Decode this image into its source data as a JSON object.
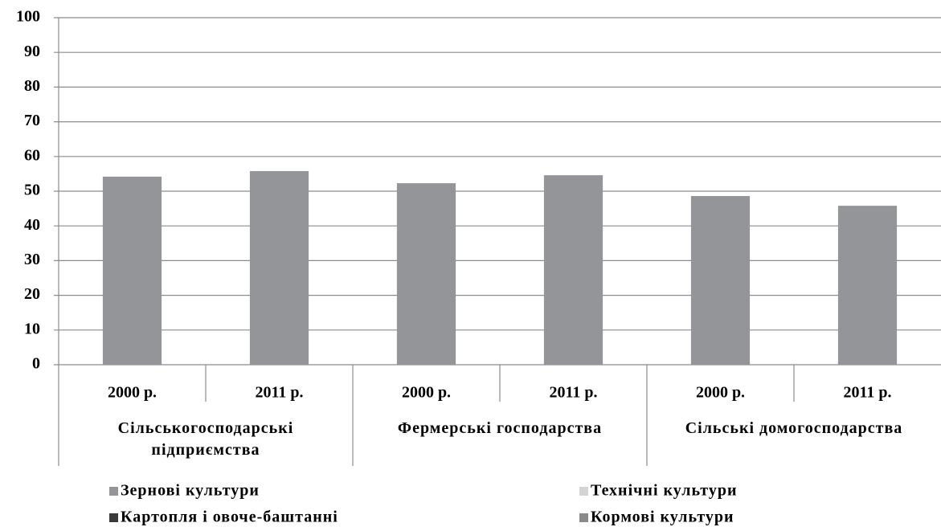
{
  "chart_data": {
    "type": "bar",
    "categories": [
      "2000 р.",
      "2011 р.",
      "2000 р.",
      "2011 р.",
      "2000 р.",
      "2011 р."
    ],
    "groups": [
      "Сільськогосподарські підприємства",
      "Фермерські господарства",
      "Сільські домогосподарства"
    ],
    "series": [
      {
        "name": "Зернові культури",
        "color": "#939598",
        "values": [
          54.2,
          55.8,
          52.3,
          54.6,
          48.6,
          45.8
        ]
      },
      {
        "name": "Картопля і овоче-баштанні",
        "color": "#3a3a3a",
        "values": [
          null,
          null,
          null,
          null,
          null,
          null
        ]
      },
      {
        "name": "Технічні культури",
        "color": "#d4d4d4",
        "values": [
          null,
          null,
          null,
          null,
          null,
          null
        ]
      },
      {
        "name": "Кормові культури",
        "color": "#8a8a8a",
        "values": [
          null,
          null,
          null,
          null,
          null,
          null
        ]
      }
    ],
    "ylim": [
      0,
      100
    ],
    "yticks": [
      0,
      10,
      20,
      30,
      40,
      50,
      60,
      70,
      80,
      90,
      100
    ],
    "grid": true
  }
}
